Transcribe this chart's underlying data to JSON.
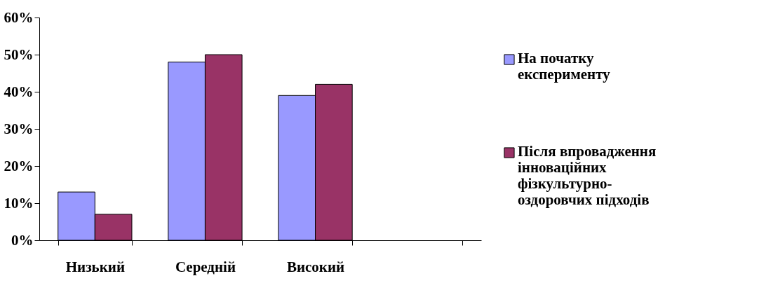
{
  "chart_data": {
    "type": "bar",
    "categories": [
      "Низький",
      "Середній",
      "Високий",
      null
    ],
    "series": [
      {
        "name": "На початку експерименту",
        "color": "#9999ff",
        "values": [
          13,
          48,
          39,
          null
        ]
      },
      {
        "name": "Після впровадження інноваційних фізкультурно-оздоровчих підходів",
        "color": "#993366",
        "values": [
          7,
          50,
          42,
          null
        ]
      }
    ],
    "ylim": [
      0,
      60
    ],
    "yticks": [
      {
        "value": 0,
        "label": "0%"
      },
      {
        "value": 10,
        "label": "10%"
      },
      {
        "value": 20,
        "label": "20%"
      },
      {
        "value": 30,
        "label": "30%"
      },
      {
        "value": 40,
        "label": "40%"
      },
      {
        "value": 50,
        "label": "50%"
      },
      {
        "value": 60,
        "label": "60%"
      }
    ],
    "grid": false,
    "legend": "right"
  }
}
